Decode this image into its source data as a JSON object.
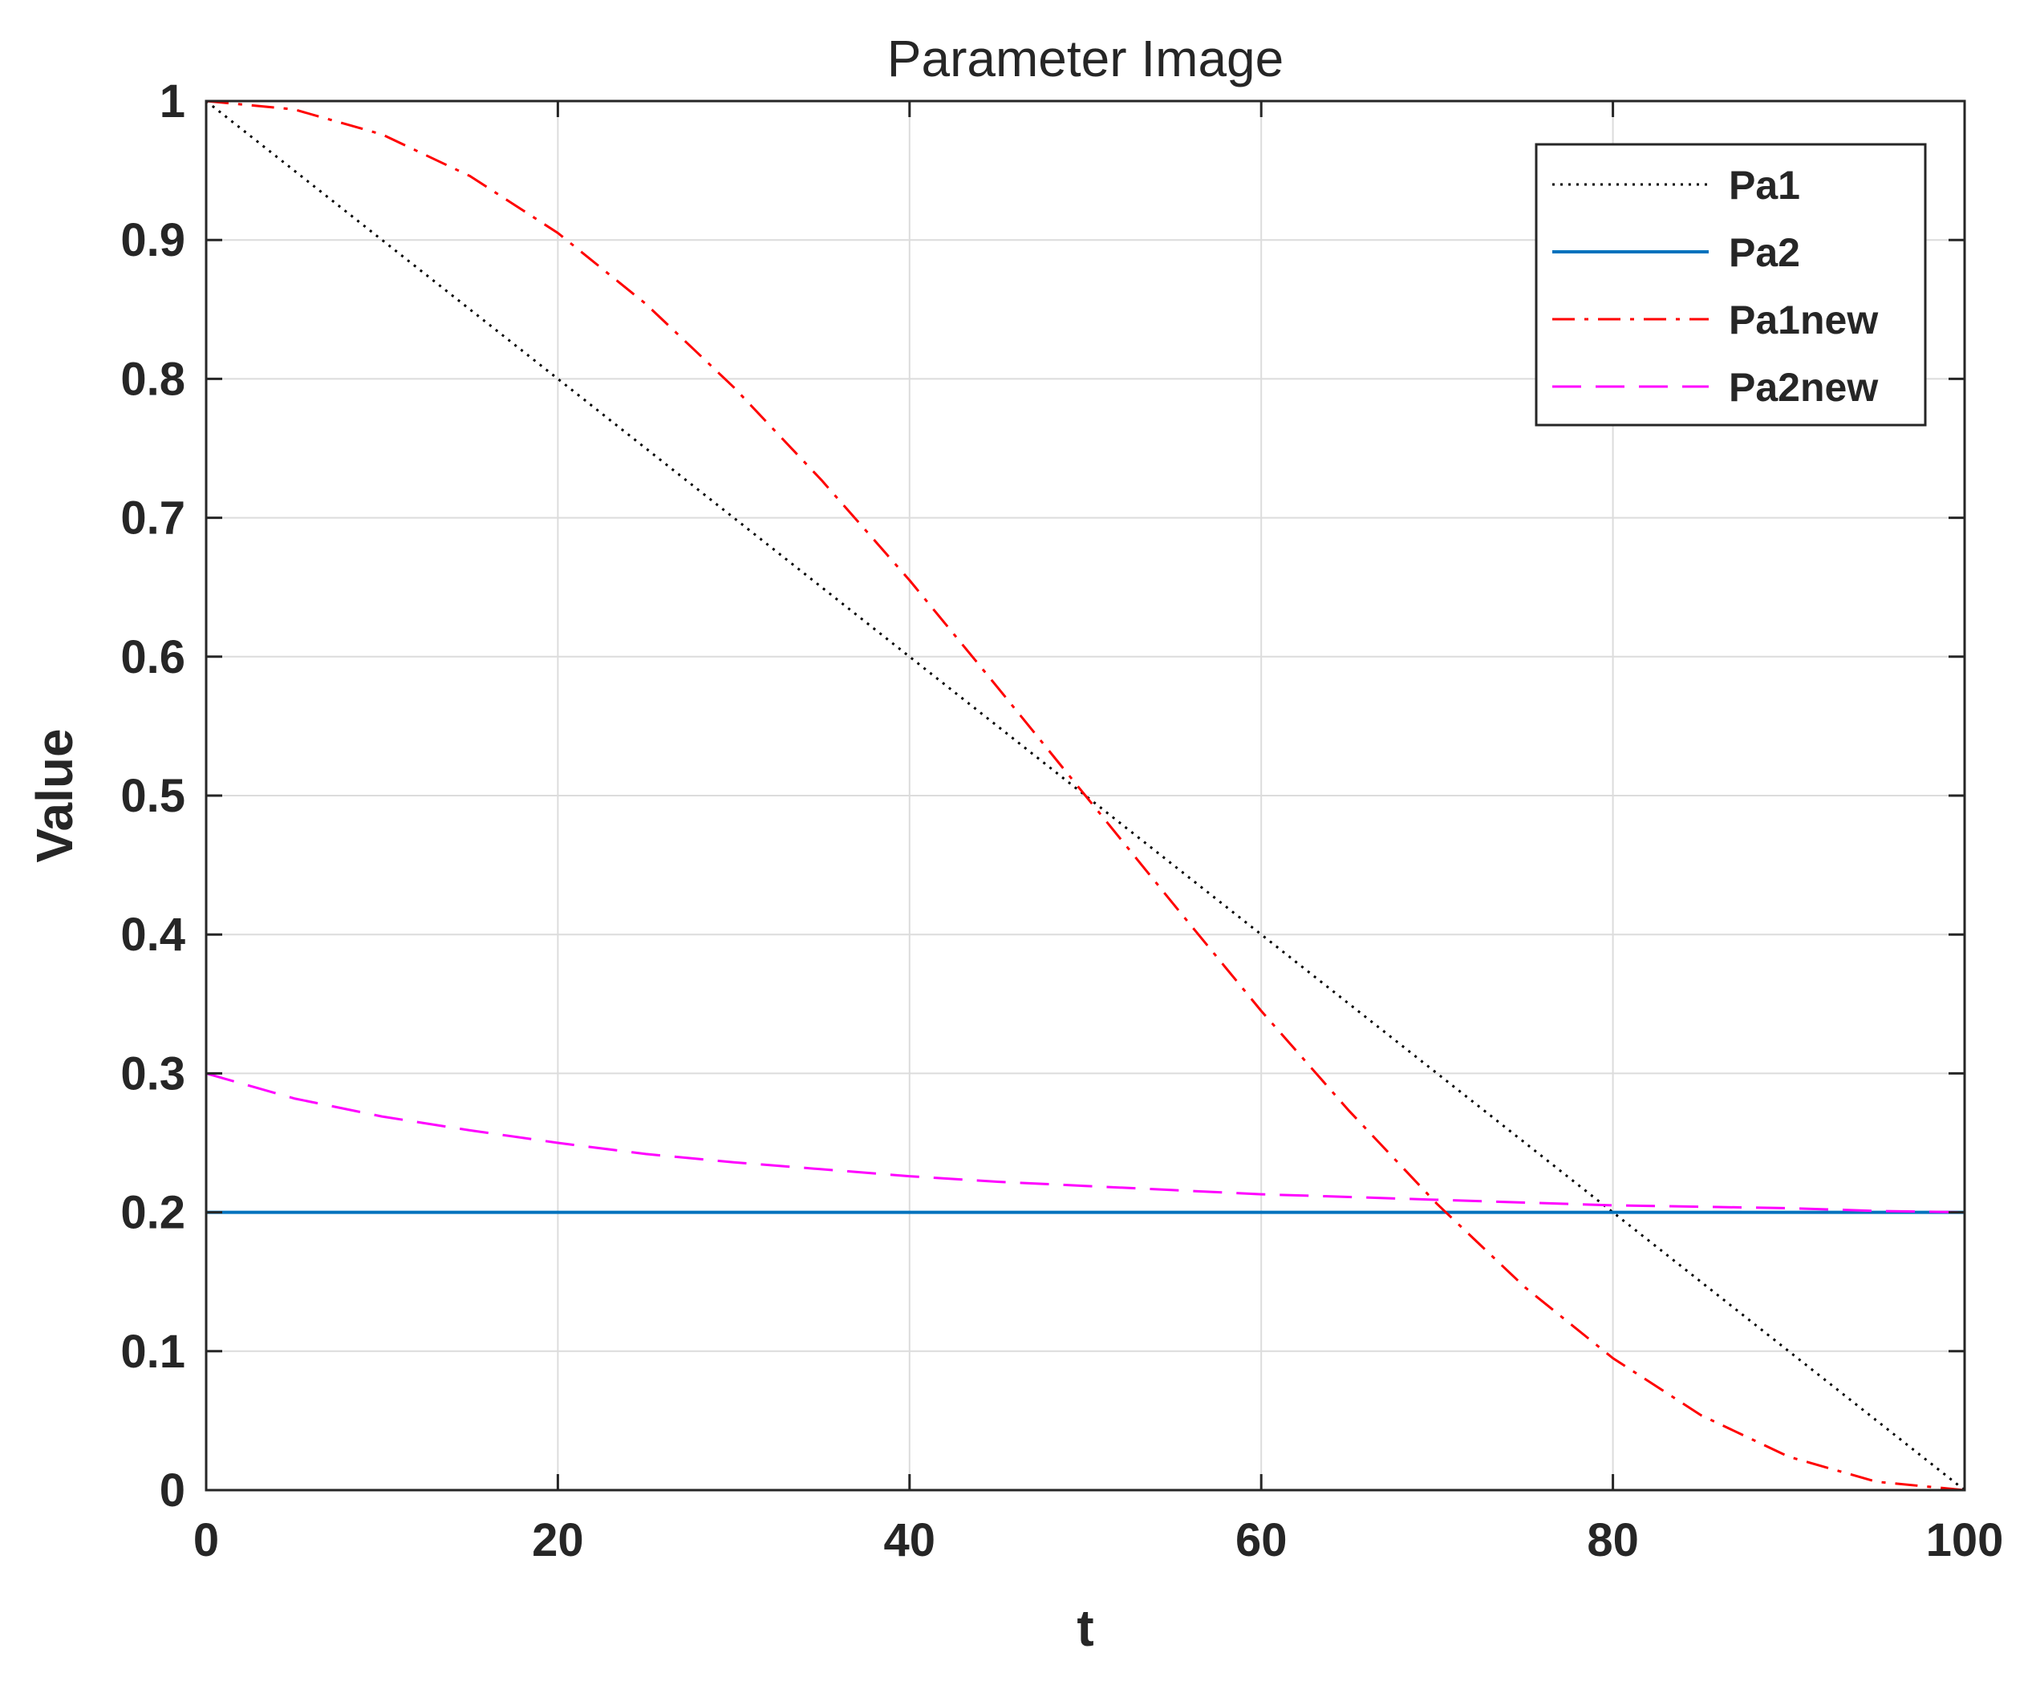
{
  "chart_data": {
    "type": "line",
    "title": "Parameter Image",
    "xlabel": "t",
    "ylabel": "Value",
    "xlim": [
      0,
      100
    ],
    "ylim": [
      0,
      1
    ],
    "xticks": [
      0,
      20,
      40,
      60,
      80,
      100
    ],
    "yticks": [
      0,
      0.1,
      0.2,
      0.3,
      0.4,
      0.5,
      0.6,
      0.7,
      0.8,
      0.9,
      1
    ],
    "xtick_labels": [
      "0",
      "20",
      "40",
      "60",
      "80",
      "100"
    ],
    "ytick_labels": [
      "0",
      "0.1",
      "0.2",
      "0.3",
      "0.4",
      "0.5",
      "0.6",
      "0.7",
      "0.8",
      "0.9",
      "1"
    ],
    "grid": true,
    "legend_position": "top-right",
    "x": [
      0,
      5,
      10,
      15,
      20,
      25,
      30,
      35,
      40,
      45,
      50,
      55,
      60,
      65,
      70,
      75,
      80,
      85,
      90,
      95,
      100
    ],
    "series": [
      {
        "name": "Pa1",
        "color": "#000000",
        "style": "dotted",
        "values": [
          1.0,
          0.95,
          0.9,
          0.85,
          0.8,
          0.75,
          0.7,
          0.65,
          0.6,
          0.55,
          0.5,
          0.45,
          0.4,
          0.35,
          0.3,
          0.25,
          0.2,
          0.15,
          0.1,
          0.05,
          0.0
        ]
      },
      {
        "name": "Pa2",
        "color": "#0072bd",
        "style": "solid",
        "values": [
          0.2,
          0.2,
          0.2,
          0.2,
          0.2,
          0.2,
          0.2,
          0.2,
          0.2,
          0.2,
          0.2,
          0.2,
          0.2,
          0.2,
          0.2,
          0.2,
          0.2,
          0.2,
          0.2,
          0.2,
          0.2
        ]
      },
      {
        "name": "Pa1new",
        "color": "#ff0000",
        "style": "dashdot",
        "values": [
          1.0,
          0.994,
          0.976,
          0.946,
          0.905,
          0.854,
          0.794,
          0.727,
          0.655,
          0.578,
          0.5,
          0.422,
          0.345,
          0.273,
          0.206,
          0.146,
          0.095,
          0.054,
          0.024,
          0.006,
          0.0
        ]
      },
      {
        "name": "Pa2new",
        "color": "#ff00ff",
        "style": "dashed",
        "values": [
          0.3,
          0.282,
          0.269,
          0.259,
          0.25,
          0.242,
          0.236,
          0.231,
          0.226,
          0.222,
          0.219,
          0.216,
          0.213,
          0.211,
          0.209,
          0.207,
          0.205,
          0.204,
          0.203,
          0.201,
          0.2
        ]
      }
    ]
  }
}
